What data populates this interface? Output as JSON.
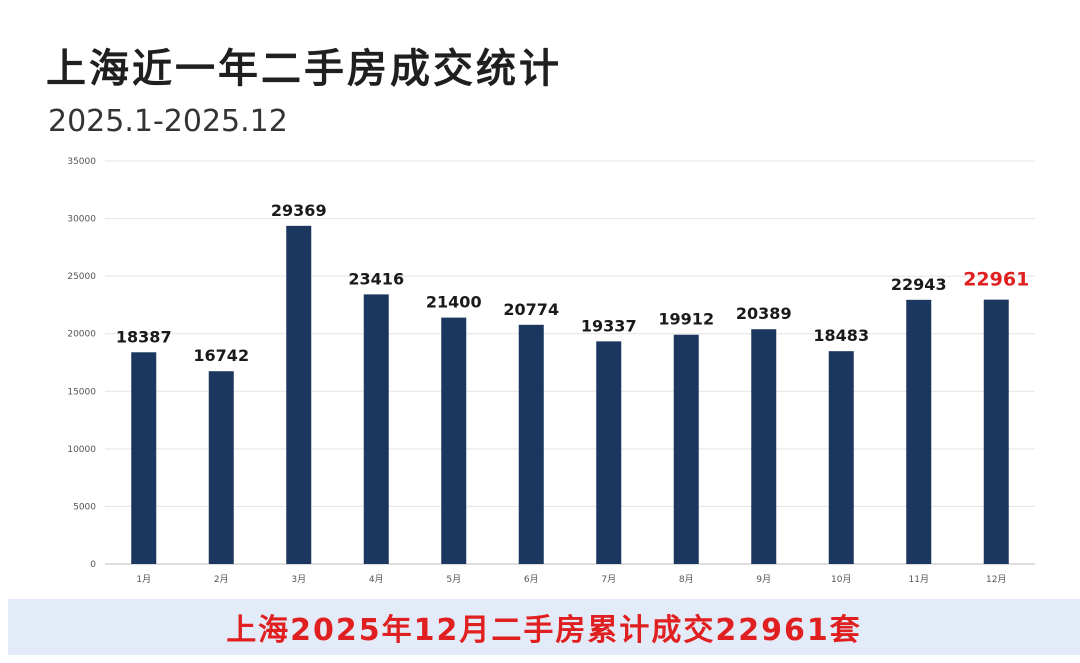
{
  "header": {
    "title": "上海近一年二手房成交统计",
    "subtitle": "2025.1-2025.12"
  },
  "banner": {
    "text": "上海2025年12月二手房累计成交22961套"
  },
  "colors": {
    "bar": "#1b365f",
    "grid": "#e3e3e3",
    "label": "#1a1a1a",
    "highlight": "#e02020",
    "banner_bg": "#e4ebf8"
  },
  "chart_data": {
    "type": "bar",
    "categories": [
      "1月",
      "2月",
      "3月",
      "4月",
      "5月",
      "6月",
      "7月",
      "8月",
      "9月",
      "10月",
      "11月",
      "12月"
    ],
    "values": [
      18387,
      16742,
      29369,
      23416,
      21400,
      20774,
      19337,
      19912,
      20389,
      18483,
      22943,
      22961
    ],
    "data_labels": [
      "18387",
      "16742",
      "29369",
      "23416",
      "21400",
      "20774",
      "19337",
      "19912",
      "20389",
      "18483",
      "22943",
      "22961"
    ],
    "highlight_index": 11,
    "yticks": [
      0,
      5000,
      10000,
      15000,
      20000,
      25000,
      30000,
      35000
    ],
    "ytick_labels": [
      "0",
      "5000",
      "10000",
      "15000",
      "20000",
      "25000",
      "30000",
      "35000"
    ],
    "ylim": [
      0,
      35000
    ],
    "grid": true,
    "legend": "none"
  }
}
